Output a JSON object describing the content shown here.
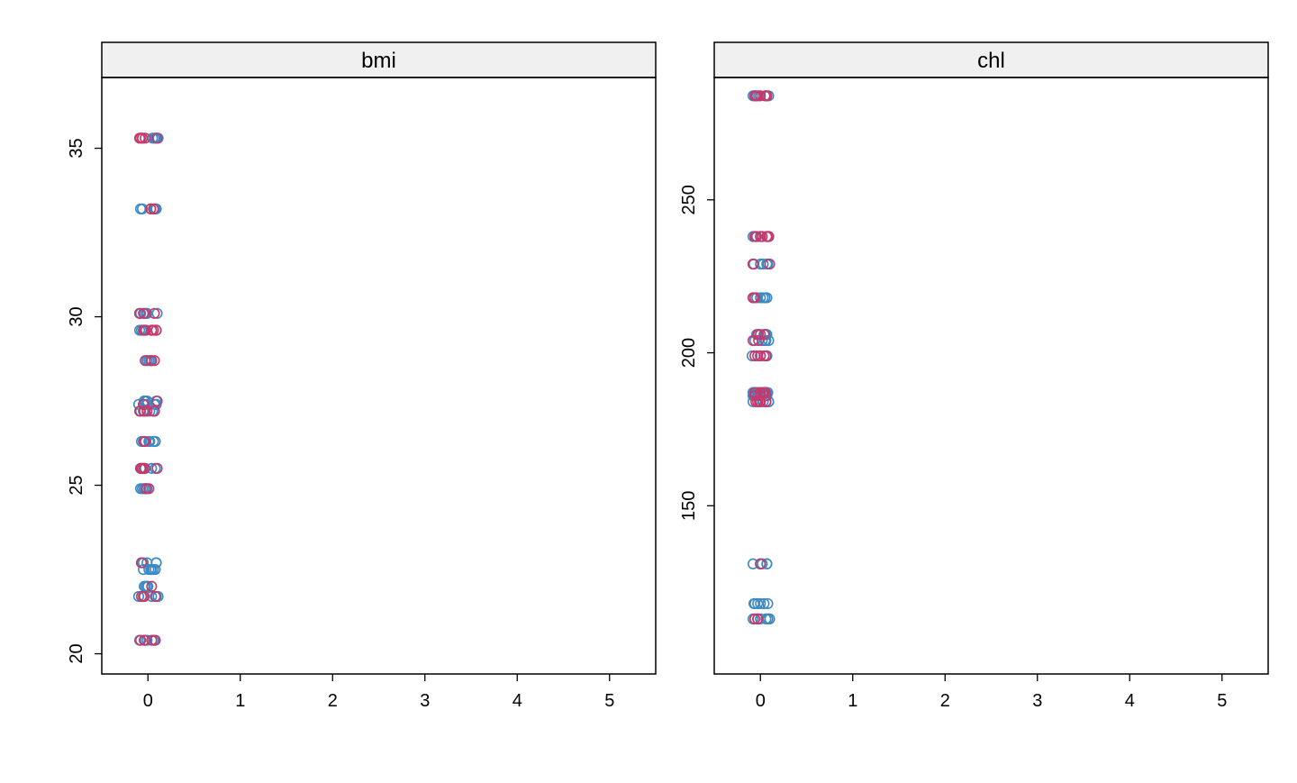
{
  "colors": {
    "observed": "#3b8ac4",
    "imputed": "#c8386a",
    "strip": "#f0f0f0"
  },
  "chart_data": [
    {
      "type": "scatter",
      "title": "bmi",
      "xlabel": "",
      "ylabel": "",
      "xlim": [
        -0.5,
        5.5
      ],
      "ylim": [
        19.4,
        37.1
      ],
      "xticks": [
        "0",
        "1",
        "2",
        "3",
        "4",
        "5"
      ],
      "yticks": [
        "20",
        "25",
        "30",
        "35"
      ],
      "grid": false,
      "series": [
        {
          "role": "observed",
          "points": [
            [
              0.05,
              35.3
            ],
            [
              0.03,
              33.2
            ],
            [
              -0.09,
              30.1
            ],
            [
              0.04,
              29.6
            ],
            [
              -0.01,
              28.7
            ],
            [
              -0.03,
              27.5
            ],
            [
              -0.04,
              27.4
            ],
            [
              -0.05,
              27.2
            ],
            [
              0.01,
              26.3
            ],
            [
              -0.08,
              25.5
            ],
            [
              -0.08,
              24.9
            ],
            [
              -0.06,
              22.7
            ],
            [
              -0.05,
              22.5
            ],
            [
              -0.01,
              22.0
            ],
            [
              -0.05,
              21.7
            ],
            [
              0.06,
              20.4
            ],
            [
              0.11,
              35.3
            ],
            [
              -0.08,
              33.2
            ],
            [
              -0.01,
              30.1
            ],
            [
              -0.02,
              29.6
            ],
            [
              0.03,
              28.7
            ],
            [
              0.09,
              27.5
            ],
            [
              0.09,
              27.4
            ],
            [
              0.07,
              27.2
            ],
            [
              0.08,
              26.3
            ],
            [
              -0.07,
              25.5
            ],
            [
              -0.06,
              24.9
            ],
            [
              -0.07,
              22.7
            ],
            [
              0.04,
              22.5
            ],
            [
              -0.01,
              22.0
            ],
            [
              -0.05,
              21.7
            ],
            [
              0.06,
              20.4
            ],
            [
              0.09,
              35.3
            ],
            [
              0.08,
              33.2
            ],
            [
              0.1,
              30.1
            ],
            [
              -0.07,
              29.6
            ],
            [
              0.03,
              28.7
            ],
            [
              -0.01,
              27.5
            ],
            [
              0.07,
              27.4
            ],
            [
              -0.08,
              27.2
            ],
            [
              0.02,
              26.3
            ],
            [
              -0.06,
              25.5
            ],
            [
              -0.02,
              24.9
            ],
            [
              -0.01,
              22.7
            ],
            [
              0.06,
              22.5
            ],
            [
              -0.03,
              22.0
            ],
            [
              -0.1,
              21.7
            ],
            [
              -0.01,
              20.4
            ],
            [
              -0.06,
              35.3
            ],
            [
              0.07,
              33.2
            ],
            [
              -0.08,
              30.1
            ],
            [
              0.09,
              29.6
            ],
            [
              -0.01,
              28.7
            ],
            [
              -0.01,
              27.5
            ],
            [
              -0.1,
              27.4
            ],
            [
              0.05,
              27.2
            ],
            [
              0.06,
              26.3
            ],
            [
              -0.03,
              25.5
            ],
            [
              -0.01,
              24.9
            ],
            [
              -0.05,
              22.7
            ],
            [
              0.03,
              22.5
            ],
            [
              -0.01,
              22.0
            ],
            [
              0.09,
              21.7
            ],
            [
              -0.03,
              20.4
            ],
            [
              0.07,
              35.3
            ],
            [
              0.09,
              33.2
            ],
            [
              -0.05,
              30.1
            ],
            [
              -0.09,
              29.6
            ],
            [
              0.03,
              28.7
            ],
            [
              -0.04,
              27.5
            ],
            [
              0.09,
              27.4
            ],
            [
              0.02,
              27.2
            ],
            [
              -0.07,
              26.3
            ],
            [
              0.04,
              25.5
            ],
            [
              -0.04,
              24.9
            ],
            [
              0.09,
              22.7
            ],
            [
              0.01,
              22.5
            ],
            [
              0.0,
              22.0
            ],
            [
              0.04,
              21.7
            ],
            [
              -0.09,
              20.4
            ],
            [
              0.08,
              35.3
            ],
            [
              -0.06,
              33.2
            ],
            [
              -0.02,
              30.1
            ],
            [
              -0.04,
              29.6
            ],
            [
              0.01,
              28.7
            ],
            [
              -0.04,
              27.5
            ],
            [
              -0.01,
              27.4
            ],
            [
              -0.04,
              27.2
            ],
            [
              -0.05,
              26.3
            ],
            [
              0.08,
              25.5
            ],
            [
              -0.04,
              24.9
            ],
            [
              0.09,
              22.7
            ],
            [
              0.08,
              22.5
            ],
            [
              -0.04,
              22.0
            ],
            [
              0.11,
              21.7
            ],
            [
              0.07,
              20.4
            ]
          ]
        },
        {
          "role": "imputed",
          "points": [
            [
              0.1,
              35.3
            ],
            [
              -0.09,
              35.3
            ],
            [
              -0.06,
              35.3
            ],
            [
              0.09,
              29.6
            ],
            [
              -0.03,
              28.7
            ],
            [
              0.04,
              28.7
            ],
            [
              -0.01,
              27.2
            ],
            [
              -0.04,
              26.3
            ],
            [
              0.1,
              25.5
            ],
            [
              -0.03,
              35.3
            ],
            [
              0.06,
              33.2
            ],
            [
              -0.04,
              30.1
            ],
            [
              -0.04,
              25.5
            ],
            [
              -0.02,
              24.9
            ],
            [
              0.01,
              24.9
            ],
            [
              -0.04,
              20.4
            ],
            [
              0.08,
              20.4
            ],
            [
              -0.09,
              30.1
            ],
            [
              0.04,
              29.6
            ],
            [
              0.06,
              29.6
            ],
            [
              -0.09,
              27.2
            ],
            [
              0.07,
              27.2
            ],
            [
              -0.05,
              27.4
            ],
            [
              0.04,
              22.0
            ],
            [
              -0.04,
              21.7
            ],
            [
              -0.08,
              35.3
            ],
            [
              0.03,
              33.2
            ],
            [
              0.07,
              30.1
            ],
            [
              -0.05,
              29.6
            ],
            [
              -0.03,
              29.6
            ],
            [
              0.07,
              27.2
            ],
            [
              -0.07,
              22.7
            ],
            [
              -0.07,
              21.7
            ],
            [
              0.04,
              28.7
            ],
            [
              0.07,
              28.7
            ],
            [
              0.1,
              27.5
            ],
            [
              -0.04,
              27.2
            ],
            [
              -0.03,
              26.3
            ],
            [
              -0.04,
              25.5
            ],
            [
              -0.08,
              25.5
            ],
            [
              -0.06,
              25.5
            ],
            [
              0.08,
              21.7
            ],
            [
              -0.08,
              20.4
            ],
            [
              0.04,
              20.4
            ]
          ]
        }
      ]
    },
    {
      "type": "scatter",
      "title": "chl",
      "xlabel": "",
      "ylabel": "",
      "xlim": [
        -0.5,
        5.5
      ],
      "ylim": [
        95,
        290
      ],
      "xticks": [
        "0",
        "1",
        "2",
        "3",
        "4",
        "5"
      ],
      "yticks": [
        "150",
        "200",
        "250"
      ],
      "grid": false,
      "series": [
        {
          "role": "observed",
          "points": [
            [
              -0.08,
              284
            ],
            [
              0.0,
              238
            ],
            [
              0.07,
              229
            ],
            [
              0.05,
              218
            ],
            [
              -0.02,
              206
            ],
            [
              0.05,
              204
            ],
            [
              0.06,
              199
            ],
            [
              -0.08,
              187
            ],
            [
              -0.03,
              187
            ],
            [
              0.03,
              187
            ],
            [
              0.06,
              187
            ],
            [
              0.0,
              184
            ],
            [
              0.07,
              131
            ],
            [
              0.0,
              118
            ],
            [
              0.0,
              113
            ],
            [
              -0.06,
              284
            ],
            [
              0.07,
              238
            ],
            [
              0.07,
              229
            ],
            [
              0.07,
              218
            ],
            [
              -0.06,
              204
            ],
            [
              0.07,
              199
            ],
            [
              -0.08,
              186
            ],
            [
              -0.02,
              186
            ],
            [
              0.04,
              187
            ],
            [
              0.08,
              187
            ],
            [
              0.07,
              131
            ],
            [
              -0.06,
              118
            ],
            [
              -0.08,
              113
            ],
            [
              0.06,
              284
            ],
            [
              -0.04,
              238
            ],
            [
              0.08,
              238
            ],
            [
              0.08,
              229
            ],
            [
              -0.04,
              218
            ],
            [
              0.05,
              206
            ],
            [
              0.02,
              204
            ],
            [
              -0.08,
              187
            ],
            [
              -0.04,
              187
            ],
            [
              0.0,
              187
            ],
            [
              0.03,
              184
            ],
            [
              -0.08,
              131
            ],
            [
              -0.07,
              118
            ],
            [
              0.06,
              113
            ],
            [
              -0.05,
              284
            ],
            [
              0.07,
              238
            ],
            [
              0.0,
              229
            ],
            [
              0.03,
              218
            ],
            [
              0.07,
              206
            ],
            [
              0.02,
              204
            ],
            [
              0.07,
              199
            ],
            [
              -0.06,
              187
            ],
            [
              -0.02,
              187
            ],
            [
              0.04,
              187
            ],
            [
              0.07,
              186
            ],
            [
              -0.08,
              184
            ],
            [
              0.02,
              131
            ],
            [
              -0.03,
              118
            ],
            [
              0.1,
              113
            ],
            [
              -0.02,
              284
            ],
            [
              0.09,
              238
            ],
            [
              0.03,
              229
            ],
            [
              0.0,
              218
            ],
            [
              -0.04,
              206
            ],
            [
              0.06,
              204
            ],
            [
              0.0,
              199
            ],
            [
              -0.06,
              187
            ],
            [
              0.02,
              187
            ],
            [
              0.06,
              187
            ],
            [
              0.09,
              184
            ],
            [
              0.0,
              131
            ],
            [
              0.08,
              118
            ],
            [
              0.08,
              113
            ],
            [
              0.09,
              284
            ],
            [
              -0.08,
              238
            ],
            [
              -0.07,
              229
            ],
            [
              -0.08,
              218
            ],
            [
              0.06,
              206
            ],
            [
              0.09,
              204
            ],
            [
              -0.09,
              199
            ],
            [
              -0.07,
              186
            ],
            [
              0.04,
              187
            ],
            [
              0.07,
              187
            ],
            [
              0.09,
              184
            ],
            [
              0.0,
              131
            ],
            [
              0.04,
              118
            ],
            [
              -0.03,
              113
            ]
          ]
        },
        {
          "role": "imputed",
          "points": [
            [
              0.0,
              284
            ],
            [
              -0.06,
              218
            ],
            [
              0.0,
              206
            ],
            [
              -0.02,
              204
            ],
            [
              0.04,
              199
            ],
            [
              0.06,
              199
            ],
            [
              -0.06,
              186
            ],
            [
              0.0,
              186
            ],
            [
              0.06,
              184
            ],
            [
              0.0,
              184
            ],
            [
              0.0,
              238
            ],
            [
              -0.08,
              229
            ],
            [
              -0.06,
              199
            ],
            [
              -0.03,
              199
            ],
            [
              0.0,
              199
            ],
            [
              0.03,
              187
            ],
            [
              0.06,
              184
            ],
            [
              -0.06,
              113
            ],
            [
              -0.06,
              284
            ],
            [
              -0.04,
              284
            ],
            [
              -0.06,
              238
            ],
            [
              0.02,
              238
            ],
            [
              0.1,
              229
            ],
            [
              -0.08,
              218
            ],
            [
              -0.08,
              204
            ],
            [
              0.06,
              186
            ],
            [
              -0.05,
              238
            ],
            [
              -0.08,
              229
            ],
            [
              -0.03,
              206
            ],
            [
              -0.06,
              187
            ],
            [
              0.0,
              187
            ],
            [
              -0.05,
              184
            ],
            [
              -0.03,
              184
            ],
            [
              -0.01,
              184
            ],
            [
              0.0,
              131
            ],
            [
              0.07,
              284
            ],
            [
              0.05,
              284
            ],
            [
              0.07,
              238
            ],
            [
              0.09,
              238
            ],
            [
              0.04,
              206
            ],
            [
              0.05,
              187
            ],
            [
              0.06,
              184
            ],
            [
              -0.03,
              113
            ]
          ]
        }
      ]
    }
  ]
}
